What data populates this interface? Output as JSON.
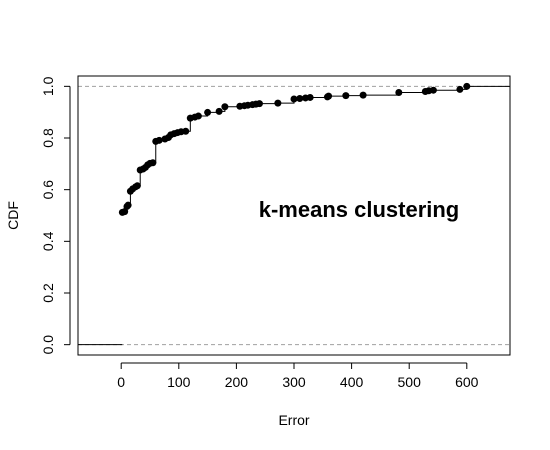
{
  "chart_data": {
    "type": "line",
    "xlabel": "Error",
    "ylabel": "CDF",
    "annotation": "k-means clustering",
    "xlim": [
      -75,
      675
    ],
    "ylim": [
      -0.04,
      1.04
    ],
    "x_ticks": [
      0,
      100,
      200,
      300,
      400,
      500,
      600
    ],
    "y_ticks": [
      0.0,
      0.2,
      0.4,
      0.6,
      0.8,
      1.0
    ],
    "y_tick_labels": [
      "0.0",
      "0.2",
      "0.4",
      "0.6",
      "0.8",
      "1.0"
    ],
    "reference_lines": [
      0,
      1
    ],
    "line_color": "#000000",
    "reference_line_color": "#a0a0a0",
    "points": [
      {
        "x": 2,
        "y": 0.512
      },
      {
        "x": 6,
        "y": 0.515
      },
      {
        "x": 10,
        "y": 0.535
      },
      {
        "x": 12,
        "y": 0.54
      },
      {
        "x": 16,
        "y": 0.594
      },
      {
        "x": 20,
        "y": 0.603
      },
      {
        "x": 25,
        "y": 0.611
      },
      {
        "x": 28,
        "y": 0.615
      },
      {
        "x": 33,
        "y": 0.676
      },
      {
        "x": 38,
        "y": 0.68
      },
      {
        "x": 42,
        "y": 0.686
      },
      {
        "x": 46,
        "y": 0.696
      },
      {
        "x": 50,
        "y": 0.702
      },
      {
        "x": 55,
        "y": 0.704
      },
      {
        "x": 60,
        "y": 0.787
      },
      {
        "x": 66,
        "y": 0.791
      },
      {
        "x": 76,
        "y": 0.796
      },
      {
        "x": 82,
        "y": 0.802
      },
      {
        "x": 86,
        "y": 0.812
      },
      {
        "x": 92,
        "y": 0.817
      },
      {
        "x": 98,
        "y": 0.821
      },
      {
        "x": 104,
        "y": 0.824
      },
      {
        "x": 112,
        "y": 0.826
      },
      {
        "x": 120,
        "y": 0.877
      },
      {
        "x": 128,
        "y": 0.881
      },
      {
        "x": 134,
        "y": 0.885
      },
      {
        "x": 150,
        "y": 0.899
      },
      {
        "x": 170,
        "y": 0.903
      },
      {
        "x": 180,
        "y": 0.921
      },
      {
        "x": 206,
        "y": 0.923
      },
      {
        "x": 214,
        "y": 0.925
      },
      {
        "x": 220,
        "y": 0.927
      },
      {
        "x": 228,
        "y": 0.929
      },
      {
        "x": 234,
        "y": 0.931
      },
      {
        "x": 240,
        "y": 0.933
      },
      {
        "x": 272,
        "y": 0.935
      },
      {
        "x": 300,
        "y": 0.951
      },
      {
        "x": 310,
        "y": 0.953
      },
      {
        "x": 320,
        "y": 0.955
      },
      {
        "x": 328,
        "y": 0.957
      },
      {
        "x": 358,
        "y": 0.959
      },
      {
        "x": 360,
        "y": 0.962
      },
      {
        "x": 390,
        "y": 0.964
      },
      {
        "x": 420,
        "y": 0.966
      },
      {
        "x": 482,
        "y": 0.976
      },
      {
        "x": 528,
        "y": 0.98
      },
      {
        "x": 534,
        "y": 0.983
      },
      {
        "x": 542,
        "y": 0.985
      },
      {
        "x": 588,
        "y": 0.988
      },
      {
        "x": 600,
        "y": 1.0
      }
    ]
  }
}
